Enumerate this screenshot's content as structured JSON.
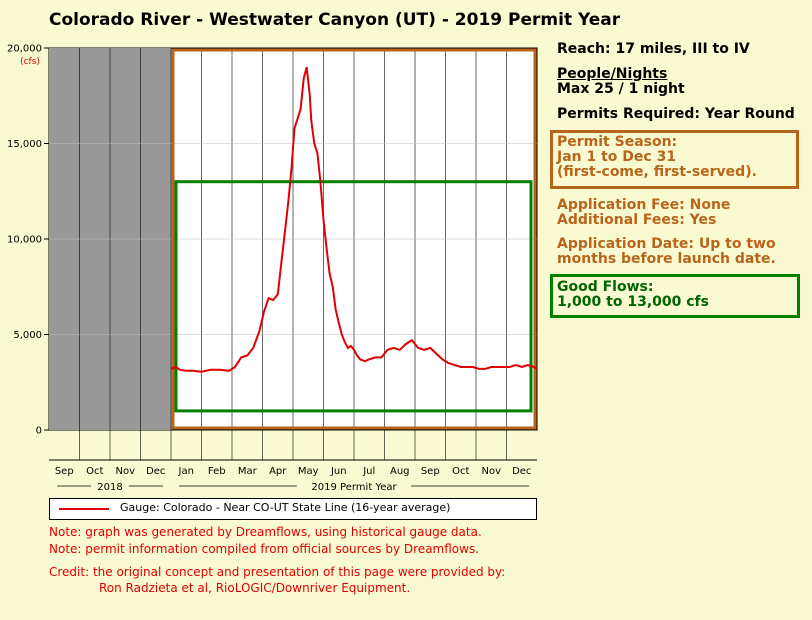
{
  "title": "Colorado River - Westwater Canyon (UT) - 2019 Permit Year",
  "info": {
    "reach": "Reach: 17 miles, III to IV",
    "people_heading": "People/Nights",
    "people_value": "Max 25 / 1 night",
    "permits_required": "Permits Required: Year Round",
    "season_line1": "Permit Season:",
    "season_line2": "Jan 1 to Dec 31",
    "season_line3": "(first-come, first-served).",
    "app_fee": "Application Fee: None",
    "add_fees": "Additional Fees: Yes",
    "app_date_line1": "Application Date: Up to two",
    "app_date_line2": "months before launch date.",
    "good_flows_line1": "Good Flows:",
    "good_flows_line2": "1,000 to 13,000 cfs"
  },
  "legend": {
    "label": "Gauge: Colorado - Near CO-UT State Line (16-year average)"
  },
  "notes": {
    "note1": "Note: graph was generated by Dreamflows, using historical gauge data.",
    "note2": "Note: permit information compiled from official sources by Dreamflows.",
    "credit1": "Credit: the original concept and presentation of this page were provided by:",
    "credit2": "Ron Radzieta et al, RioLOGIC/Downriver Equipment."
  },
  "colors": {
    "flow_line": "#e00000",
    "permit_season_box": "#b8651b",
    "good_flows_box": "#008000",
    "previous_year_shade": "#999999"
  },
  "chart_data": {
    "type": "line",
    "title": "",
    "xlabel": "",
    "ylabel": "(cfs)",
    "ylim": [
      0,
      20000
    ],
    "yticks": [
      0,
      5000,
      10000,
      15000,
      20000
    ],
    "ytick_labels": [
      "0",
      "5,000",
      "10,000",
      "15,000",
      "20,000"
    ],
    "month_labels": [
      "Sep",
      "Oct",
      "Nov",
      "Dec",
      "Jan",
      "Feb",
      "Mar",
      "Apr",
      "May",
      "Jun",
      "Jul",
      "Aug",
      "Sep",
      "Oct",
      "Nov",
      "Dec"
    ],
    "year_groups": [
      {
        "label": "2018",
        "months": [
          "Sep",
          "Oct",
          "Nov",
          "Dec"
        ]
      },
      {
        "label": "2019 Permit Year",
        "months": [
          "Jan",
          "Feb",
          "Mar",
          "Apr",
          "May",
          "Jun",
          "Jul",
          "Aug",
          "Sep",
          "Oct",
          "Nov",
          "Dec"
        ]
      }
    ],
    "grid": true,
    "shaded_period": {
      "start_month": 0,
      "end_month": 4
    },
    "permit_season_range": {
      "start_month": 4,
      "end_month": 16
    },
    "good_flows_range": {
      "min_cfs": 1000,
      "max_cfs": 13000
    },
    "series": [
      {
        "name": "Gauge: Colorado - Near CO-UT State Line (16-year average)",
        "x_month": [
          4.0,
          4.15,
          4.3,
          4.5,
          4.7,
          5.0,
          5.3,
          5.6,
          5.9,
          6.1,
          6.3,
          6.5,
          6.7,
          6.9,
          7.05,
          7.2,
          7.35,
          7.5,
          7.6,
          7.75,
          7.85,
          7.95,
          8.05,
          8.15,
          8.25,
          8.35,
          8.45,
          8.55,
          8.6,
          8.7,
          8.8,
          8.9,
          9.0,
          9.1,
          9.2,
          9.3,
          9.4,
          9.5,
          9.6,
          9.7,
          9.8,
          9.9,
          10.0,
          10.1,
          10.2,
          10.35,
          10.5,
          10.7,
          10.9,
          11.1,
          11.3,
          11.5,
          11.7,
          11.9,
          12.1,
          12.3,
          12.5,
          12.7,
          12.9,
          13.1,
          13.3,
          13.5,
          13.7,
          13.9,
          14.1,
          14.3,
          14.5,
          14.7,
          14.9,
          15.1,
          15.3,
          15.5,
          15.7,
          15.9,
          16.0
        ],
        "values": [
          3200,
          3300,
          3150,
          3100,
          3100,
          3050,
          3150,
          3150,
          3100,
          3300,
          3800,
          3900,
          4300,
          5200,
          6200,
          6900,
          6800,
          7100,
          8500,
          10600,
          12000,
          13700,
          15800,
          16300,
          16800,
          18400,
          19000,
          17500,
          16200,
          15000,
          14500,
          13000,
          11000,
          9500,
          8200,
          7500,
          6300,
          5600,
          5000,
          4600,
          4300,
          4400,
          4200,
          3900,
          3700,
          3600,
          3700,
          3800,
          3800,
          4200,
          4300,
          4200,
          4500,
          4700,
          4300,
          4200,
          4300,
          4000,
          3700,
          3500,
          3400,
          3300,
          3300,
          3300,
          3200,
          3200,
          3300,
          3300,
          3300,
          3300,
          3400,
          3300,
          3400,
          3300,
          3200
        ]
      }
    ]
  }
}
